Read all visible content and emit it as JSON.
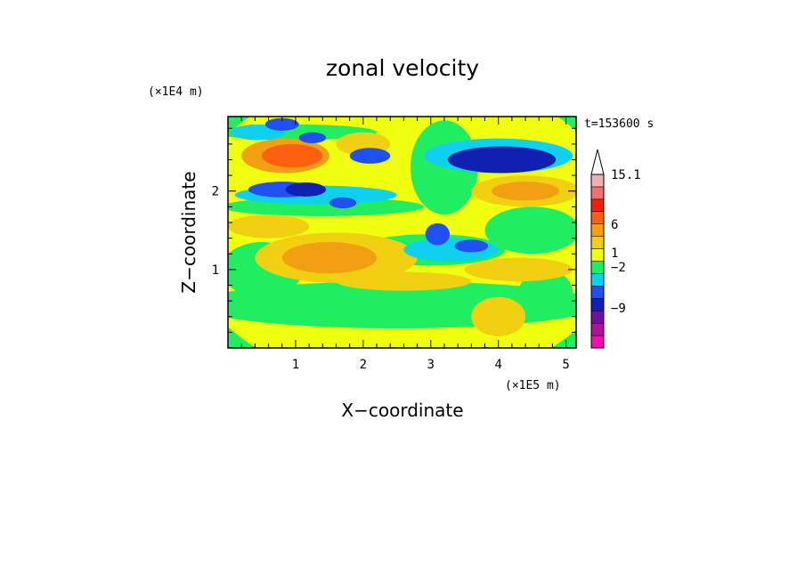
{
  "chart_data": {
    "type": "heatmap",
    "title": "zonal velocity",
    "xlabel": "X−coordinate",
    "ylabel": "Z−coordinate",
    "x_scale_label": "(×1E5 m)",
    "y_scale_label": "(×1E4 m)",
    "time_label": "t=153600 s",
    "xlim": [
      0,
      5.15
    ],
    "ylim": [
      0,
      2.95
    ],
    "x_ticks": [
      1,
      2,
      3,
      4,
      5
    ],
    "y_ticks": [
      1,
      2
    ],
    "x_tick_labels": [
      "1",
      "2",
      "3",
      "4",
      "5"
    ],
    "y_tick_labels": [
      "1",
      "2"
    ],
    "colorbar": {
      "colors": [
        "#f010b0",
        "#b010a0",
        "#7010a0",
        "#1020b0",
        "#2050f0",
        "#10d0f0",
        "#20ee60",
        "#f0ff10",
        "#f0d010",
        "#f0a010",
        "#ff6010",
        "#f02010",
        "#f07070",
        "#f0b0b0",
        "#ffffff"
      ],
      "tick_labels": [
        "15.1",
        "6",
        "1",
        "−2",
        "−9"
      ],
      "tick_values": [
        15.1,
        6,
        1,
        -2,
        -9
      ]
    },
    "regions": [
      {
        "color": "#f0ff10",
        "cx": 2.6,
        "cy": 1.5,
        "rx": 3.3,
        "ry": 2.0
      },
      {
        "color": "#20ee60",
        "cx": 2.5,
        "cy": 0.55,
        "rx": 3.0,
        "ry": 0.3
      },
      {
        "color": "#20ee60",
        "cx": 0.5,
        "cy": 1.0,
        "rx": 0.6,
        "ry": 0.35
      },
      {
        "color": "#20ee60",
        "cx": 4.7,
        "cy": 0.7,
        "rx": 0.4,
        "ry": 0.3
      },
      {
        "color": "#20ee60",
        "cx": 3.0,
        "cy": 1.25,
        "rx": 1.1,
        "ry": 0.2
      },
      {
        "color": "#20ee60",
        "cx": 1.4,
        "cy": 1.8,
        "rx": 1.5,
        "ry": 0.12
      },
      {
        "color": "#20ee60",
        "cx": 3.2,
        "cy": 2.3,
        "rx": 0.5,
        "ry": 0.6
      },
      {
        "color": "#20ee60",
        "cx": 4.5,
        "cy": 1.5,
        "rx": 0.7,
        "ry": 0.3
      },
      {
        "color": "#20ee60",
        "cx": 1.0,
        "cy": 2.75,
        "rx": 1.2,
        "ry": 0.1
      },
      {
        "color": "#f0d010",
        "cx": 1.6,
        "cy": 1.15,
        "rx": 1.2,
        "ry": 0.32
      },
      {
        "color": "#f0d010",
        "cx": 0.6,
        "cy": 1.55,
        "rx": 0.6,
        "ry": 0.15
      },
      {
        "color": "#f0d010",
        "cx": 4.4,
        "cy": 2.0,
        "rx": 0.8,
        "ry": 0.2
      },
      {
        "color": "#f0d010",
        "cx": 4.0,
        "cy": 0.4,
        "rx": 0.4,
        "ry": 0.25
      },
      {
        "color": "#f0d010",
        "cx": 4.3,
        "cy": 1.0,
        "rx": 0.8,
        "ry": 0.15
      },
      {
        "color": "#f0d010",
        "cx": 2.0,
        "cy": 2.6,
        "rx": 0.4,
        "ry": 0.15
      },
      {
        "color": "#f0d010",
        "cx": 2.6,
        "cy": 0.85,
        "rx": 1.0,
        "ry": 0.12
      },
      {
        "color": "#f0a010",
        "cx": 1.5,
        "cy": 1.15,
        "rx": 0.7,
        "ry": 0.2
      },
      {
        "color": "#f0a010",
        "cx": 4.4,
        "cy": 2.0,
        "rx": 0.5,
        "ry": 0.12
      },
      {
        "color": "#f0a010",
        "cx": 0.85,
        "cy": 2.45,
        "rx": 0.65,
        "ry": 0.22
      },
      {
        "color": "#ff6010",
        "cx": 0.95,
        "cy": 2.45,
        "rx": 0.45,
        "ry": 0.15
      },
      {
        "color": "#10d0f0",
        "cx": 1.3,
        "cy": 1.95,
        "rx": 1.2,
        "ry": 0.12
      },
      {
        "color": "#10d0f0",
        "cx": 0.45,
        "cy": 2.75,
        "rx": 0.4,
        "ry": 0.1
      },
      {
        "color": "#10d0f0",
        "cx": 4.0,
        "cy": 2.45,
        "rx": 1.1,
        "ry": 0.22
      },
      {
        "color": "#10d0f0",
        "cx": 3.3,
        "cy": 1.25,
        "rx": 0.7,
        "ry": 0.15
      },
      {
        "color": "#2050f0",
        "cx": 0.8,
        "cy": 2.02,
        "rx": 0.5,
        "ry": 0.1
      },
      {
        "color": "#2050f0",
        "cx": 1.7,
        "cy": 1.85,
        "rx": 0.2,
        "ry": 0.07
      },
      {
        "color": "#2050f0",
        "cx": 2.1,
        "cy": 2.45,
        "rx": 0.3,
        "ry": 0.1
      },
      {
        "color": "#2050f0",
        "cx": 3.1,
        "cy": 1.45,
        "rx": 0.18,
        "ry": 0.14
      },
      {
        "color": "#2050f0",
        "cx": 3.6,
        "cy": 1.3,
        "rx": 0.25,
        "ry": 0.08
      },
      {
        "color": "#2050f0",
        "cx": 1.25,
        "cy": 2.68,
        "rx": 0.2,
        "ry": 0.07
      },
      {
        "color": "#2050f0",
        "cx": 0.8,
        "cy": 2.85,
        "rx": 0.25,
        "ry": 0.08
      },
      {
        "color": "#1020b0",
        "cx": 4.05,
        "cy": 2.4,
        "rx": 0.8,
        "ry": 0.17
      },
      {
        "color": "#1020b0",
        "cx": 1.15,
        "cy": 2.02,
        "rx": 0.3,
        "ry": 0.09
      }
    ]
  }
}
